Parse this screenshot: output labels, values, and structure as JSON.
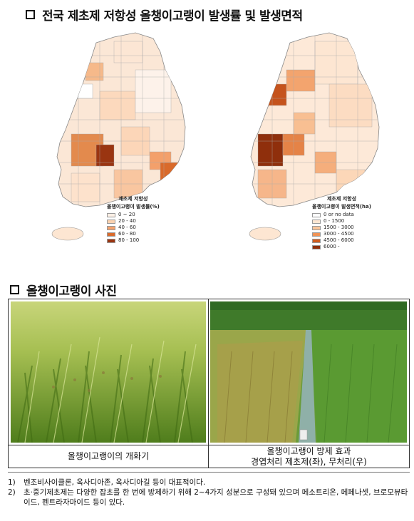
{
  "section1": {
    "title": "전국 제초제 저항성 올챙이고랭이 발생률 및 발생면적"
  },
  "maps": {
    "left": {
      "legend_title_1": "제초제 저항성",
      "legend_title_2": "올챙이고랭이 발생률(%)",
      "classes": [
        {
          "label": "0 ~ 20",
          "color": "#fdf0e6"
        },
        {
          "label": "20 - 40",
          "color": "#fbd2b0"
        },
        {
          "label": "40 - 60",
          "color": "#f4a26c"
        },
        {
          "label": "60 - 80",
          "color": "#d96a2b"
        },
        {
          "label": "80 - 100",
          "color": "#9a3511"
        }
      ]
    },
    "right": {
      "legend_title_1": "제초제 저항성",
      "legend_title_2": "올챙이고랭이 발생면적(ha)",
      "classes": [
        {
          "label": "0 or no data",
          "color": "#ffffff"
        },
        {
          "label": "0 - 1500",
          "color": "#fde6d2"
        },
        {
          "label": "1500 - 3000",
          "color": "#f9c59a"
        },
        {
          "label": "3000 - 4500",
          "color": "#f09356"
        },
        {
          "label": "4500 - 6000",
          "color": "#d05c1f"
        },
        {
          "label": "6000 -",
          "color": "#8f2f0c"
        }
      ]
    }
  },
  "section2": {
    "title": "올챙이고랭이 사진"
  },
  "photos": {
    "left_caption": "올챙이고랭이의 개화기",
    "right_caption_1": "올챙이고랭이 방제 효과",
    "right_caption_2": "경엽처리 제초제(좌), 무처리(우)"
  },
  "notes": [
    {
      "num": "1)",
      "text": "벤조비사이클론, 옥사디아존, 옥사디아길 등이 대표적이다."
    },
    {
      "num": "2)",
      "text": "초·중기제초제는 다양한 잡초를 한 번에 방제하기 위해 2~4가지 성분으로 구성돼 있으며 메소트리온, 메페나셋, 브로모뷰타이드, 펜트라자마이드 등이 있다."
    }
  ]
}
